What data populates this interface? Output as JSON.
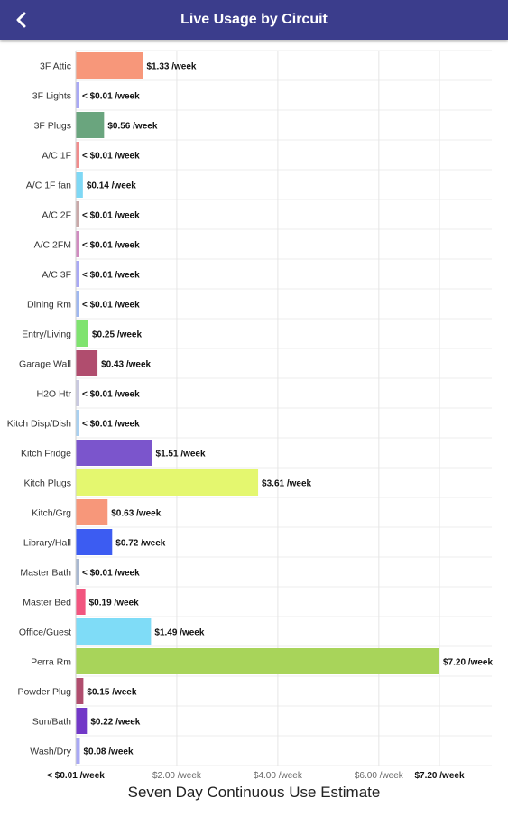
{
  "header": {
    "title": "Live Usage by Circuit",
    "back_icon": "chevron-left-icon",
    "background_color": "#3b3d8c"
  },
  "chart_data": {
    "type": "bar",
    "orientation": "horizontal",
    "title": "Seven Day Continuous Use Estimate",
    "xlim": [
      0,
      7.2
    ],
    "grid": true,
    "categories": [
      "3F Attic",
      "3F Lights",
      "3F Plugs",
      "A/C 1F",
      "A/C 1F fan",
      "A/C 2F",
      "A/C 2FM",
      "A/C 3F",
      "Dining Rm",
      "Entry/Living",
      "Garage Wall",
      "H2O Htr",
      "Kitch Disp/Dish",
      "Kitch Fridge",
      "Kitch Plugs",
      "Kitch/Grg",
      "Library/Hall",
      "Master Bath",
      "Master Bed",
      "Office/Guest",
      "Perra Rm",
      "Powder Plug",
      "Sun/Bath",
      "Wash/Dry"
    ],
    "values": [
      1.33,
      0.01,
      0.56,
      0.01,
      0.14,
      0.01,
      0.01,
      0.01,
      0.01,
      0.25,
      0.43,
      0.01,
      0.01,
      1.51,
      3.61,
      0.63,
      0.72,
      0.01,
      0.19,
      1.49,
      7.2,
      0.15,
      0.22,
      0.08
    ],
    "data_labels": [
      "$1.33 /week",
      "< $0.01 /week",
      "$0.56 /week",
      "< $0.01 /week",
      "$0.14 /week",
      "< $0.01 /week",
      "< $0.01 /week",
      "< $0.01 /week",
      "< $0.01 /week",
      "$0.25 /week",
      "$0.43 /week",
      "< $0.01 /week",
      "< $0.01 /week",
      "$1.51 /week",
      "$3.61 /week",
      "$0.63 /week",
      "$0.72 /week",
      "< $0.01 /week",
      "$0.19 /week",
      "$1.49 /week",
      "$7.20 /week",
      "$0.15 /week",
      "$0.22 /week",
      "$0.08 /week"
    ],
    "colors": [
      "#f7977a",
      "#a9a9f5",
      "#6aa57e",
      "#f08c8c",
      "#7fd8f5",
      "#c9a9a9",
      "#d08cc0",
      "#a9a9f5",
      "#9fb8f0",
      "#7fe36f",
      "#b04d6e",
      "#c9c9e0",
      "#a9d0f0",
      "#7b55cc",
      "#e4f76f",
      "#f7977a",
      "#3c5cf2",
      "#a9b8d0",
      "#f2557f",
      "#7fdcf7",
      "#a8d45a",
      "#b04d6e",
      "#7238c8",
      "#a9a9f5"
    ],
    "x_ticks": [
      {
        "value": 0,
        "label": "< $0.01 /week",
        "bold": true
      },
      {
        "value": 2,
        "label": "$2.00 /week",
        "bold": false
      },
      {
        "value": 4,
        "label": "$4.00 /week",
        "bold": false
      },
      {
        "value": 6,
        "label": "$6.00 /week",
        "bold": false
      },
      {
        "value": 7.2,
        "label": "$7.20 /week",
        "bold": true
      }
    ]
  }
}
